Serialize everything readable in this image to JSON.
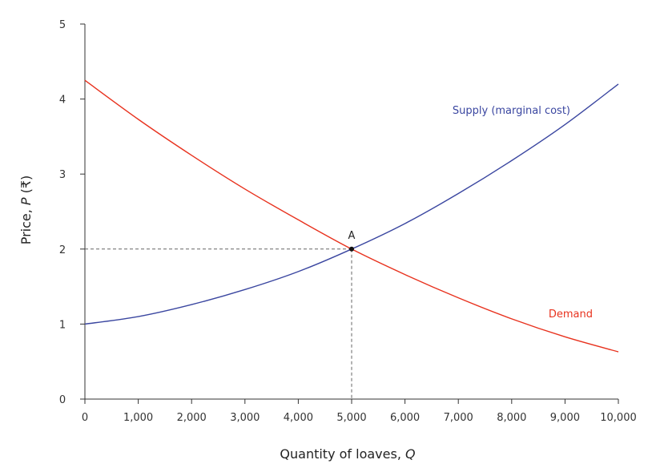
{
  "chart_data": {
    "type": "line",
    "title": "",
    "xlabel": "Quantity of loaves, ",
    "xlabel_var": "Q",
    "ylabel": "Price, ",
    "ylabel_var": "P",
    "ylabel_unit": " (₹)",
    "xlim": [
      0,
      10000
    ],
    "ylim": [
      0,
      5
    ],
    "x_ticks": [
      0,
      1000,
      2000,
      3000,
      4000,
      5000,
      6000,
      7000,
      8000,
      9000,
      10000
    ],
    "x_tick_labels": [
      "0",
      "1,000",
      "2,000",
      "3,000",
      "4,000",
      "5,000",
      "6,000",
      "7,000",
      "8,000",
      "9,000",
      "10,000"
    ],
    "y_ticks": [
      0,
      1,
      2,
      3,
      4,
      5
    ],
    "y_tick_labels": [
      "0",
      "1",
      "2",
      "3",
      "4",
      "5"
    ],
    "grid": false,
    "series": [
      {
        "name": "Supply (marginal cost)",
        "color": "#3a46a0",
        "x": [
          0,
          1000,
          2000,
          3000,
          4000,
          5000,
          6000,
          7000,
          8000,
          9000,
          10000
        ],
        "y": [
          1.0,
          1.1,
          1.26,
          1.46,
          1.7,
          2.0,
          2.34,
          2.74,
          3.18,
          3.66,
          4.2
        ]
      },
      {
        "name": "Demand",
        "color": "#e8321e",
        "x": [
          0,
          1000,
          2000,
          3000,
          4000,
          5000,
          6000,
          7000,
          8000,
          9000,
          10000
        ],
        "y": [
          4.25,
          3.73,
          3.25,
          2.8,
          2.39,
          2.0,
          1.66,
          1.35,
          1.07,
          0.83,
          0.63
        ]
      }
    ],
    "points": [
      {
        "label": "A",
        "x": 5000,
        "y": 2
      }
    ]
  }
}
